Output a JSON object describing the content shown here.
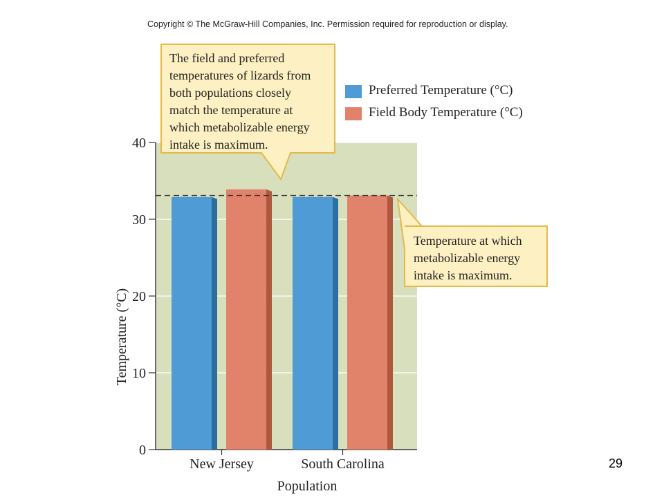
{
  "copyright": "Copyright © The McGraw-Hill Companies, Inc. Permission required for reproduction or display.",
  "slide_number": "29",
  "colors": {
    "plot_bg": "#d8dfbd",
    "preferred": "#4f9bd6",
    "preferred_side": "#2a6f9e",
    "field": "#e0836a",
    "field_side": "#b0583f",
    "callout_fill": "#fdf0c2",
    "callout_border": "#e5b84a"
  },
  "callouts": {
    "top": [
      "The field and preferred",
      "temperatures of lizards from",
      "both populations closely",
      "match the temperature at",
      "which metabolizable energy",
      "intake is maximum."
    ],
    "right": [
      "Temperature at which",
      "metabolizable energy",
      "intake is maximum."
    ]
  },
  "chart_data": {
    "type": "bar",
    "categories": [
      "New Jersey",
      "South Carolina"
    ],
    "series": [
      {
        "name": "Preferred Temperature (°C)",
        "values": [
          32.9,
          32.9
        ],
        "color": "#4f9bd6"
      },
      {
        "name": "Field Body Temperature (°C)",
        "values": [
          33.9,
          33.1
        ],
        "color": "#e0836a"
      }
    ],
    "reference_line": {
      "value": 33.1,
      "style": "dashed"
    },
    "xlabel": "Population",
    "ylabel": "Temperature (°C)",
    "ylim": [
      0,
      40
    ],
    "yticks": [
      "0",
      "10",
      "20",
      "30",
      "40"
    ],
    "legend_position": "top-right",
    "grid": true
  }
}
